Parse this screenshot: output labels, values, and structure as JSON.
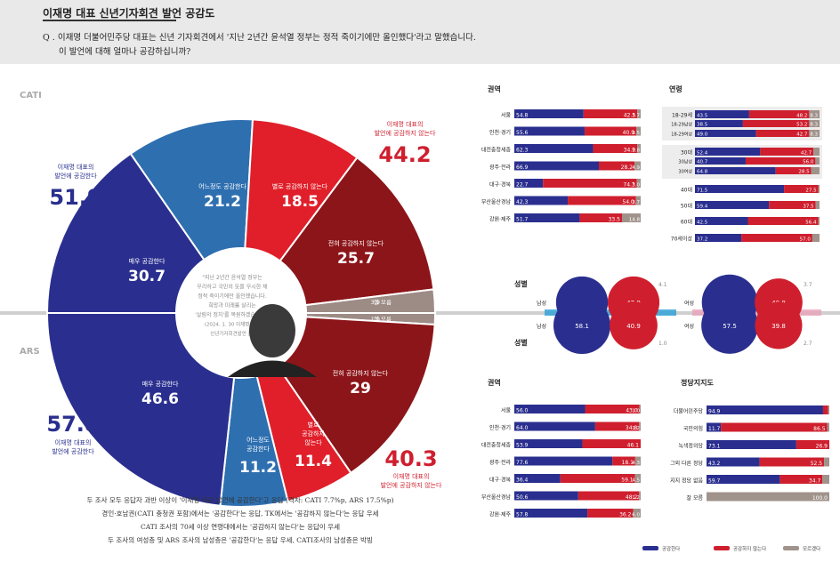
{
  "header": {
    "tag": "이재명 대표 신년기자회견 발언 공감도",
    "q_line1": "Q . 이재명 더불어민주당 대표는 신년 기자회견에서 '지난 2년간 윤석열 정부는 정적 죽이기에만 올인했다'라고 말했습니다.",
    "q_line2": "이 발언에 대해 얼마나 공감하십니까?"
  },
  "donut": {
    "cati_label": "CATI",
    "ars_label": "ARS",
    "cati_agree_label": [
      "이재명 대표의",
      "발언에 공감한다"
    ],
    "cati_agree_total": "51.9",
    "cati_disagree_label": [
      "이재명 대표의",
      "발언에 공감하지 않는다"
    ],
    "cati_disagree_total": "44.2",
    "ars_agree_total": "57.8",
    "ars_agree_label": [
      "이재명 대표의",
      "발언에 공감한다"
    ],
    "ars_disagree_total": "40.3",
    "ars_disagree_label": [
      "이재명 대표의",
      "발언에 공감하지 않는다"
    ],
    "quote": [
      "\"지난 2년간 윤석열 정부는",
      "무리하고 국민의 뜻을 무시한 채",
      "정적 죽이기에만 올인했습니다.",
      "희망과 미래를 살리는",
      "'살림의 정치'를 복원하겠습니다.\"",
      "(2024. 1. 30 이재명 대표",
      "신년기자회견발언 중)"
    ]
  },
  "chart_data": [
    {
      "type": "pie",
      "title": "CATI",
      "categories": [
        "어느정도 공감한다",
        "별로 공감하지 않는다",
        "전혀 공감하지 않는다",
        "잘 모름",
        "매우 공감한다"
      ],
      "values": [
        21.2,
        18.5,
        25.7,
        3.9,
        30.7
      ],
      "colors": [
        "#2e6fb0",
        "#e01f2a",
        "#8c1519",
        "#9d8b85",
        "#2a2f8f"
      ]
    },
    {
      "type": "pie",
      "title": "ARS",
      "categories": [
        "잘 모름",
        "전혀 공감하지 않는다",
        "별로 공감하지 않는다",
        "어느정도 공감한다",
        "매우 공감한다"
      ],
      "values": [
        1.9,
        29.0,
        11.4,
        11.2,
        46.6
      ],
      "colors": [
        "#9d8b85",
        "#8c1519",
        "#e01f2a",
        "#2e6fb0",
        "#2a2f8f"
      ]
    },
    {
      "type": "bar",
      "title": "권역",
      "subset": "CATI",
      "categories": [
        "서울",
        "인천·경기",
        "대전충청세종",
        "광주·전라",
        "대구·경북",
        "부산울산경남",
        "강원·제주"
      ],
      "series": [
        {
          "values": [
            54.8,
            55.6,
            62.3,
            66.9,
            22.7,
            42.3,
            51.7
          ]
        },
        {
          "values": [
            42.5,
            40.9,
            34.9,
            28.2,
            74.3,
            54.0,
            33.5
          ]
        },
        {
          "values": [
            2.7,
            3.5,
            2.8,
            4.9,
            3.0,
            3.7,
            14.8
          ]
        }
      ]
    },
    {
      "type": "bar",
      "title": "연령",
      "subset": "CATI",
      "categories": [
        "18-29세",
        "18-29남성",
        "18-29여성",
        "30대",
        "30남성",
        "30여성",
        "40대",
        "50대",
        "60대",
        "70세이상"
      ],
      "series": [
        {
          "values": [
            43.5,
            38.5,
            49.0,
            52.4,
            40.7,
            64.8,
            71.5,
            59.4,
            42.5,
            37.2
          ]
        },
        {
          "values": [
            48.2,
            53.2,
            42.7,
            42.7,
            56.0,
            28.5,
            27.5,
            37.5,
            56.4,
            57.0
          ]
        },
        {
          "values": [
            8.3,
            8.3,
            8.3,
            4.9,
            3.3,
            6.7,
            1.0,
            3.1,
            1.1,
            5.8
          ]
        }
      ]
    },
    {
      "type": "bar",
      "title": "성별",
      "categories": [
        "CATI 남성",
        "ARS 남성",
        "CATI 여성",
        "ARS 여성"
      ],
      "series": [
        {
          "values": [
            48.2,
            58.1,
            55.5,
            57.5
          ]
        },
        {
          "values": [
            47.9,
            40.9,
            40.8,
            39.8
          ]
        },
        {
          "values": [
            4.1,
            1.0,
            3.7,
            2.7
          ]
        }
      ]
    },
    {
      "type": "bar",
      "title": "권역",
      "subset": "ARS",
      "categories": [
        "서울",
        "인천·경기",
        "대전충청세종",
        "광주·전라",
        "대구·경북",
        "부산울산경남",
        "강원·제주"
      ],
      "series": [
        {
          "values": [
            56.0,
            64.0,
            53.9,
            77.6,
            36.4,
            50.6,
            57.8
          ]
        },
        {
          "values": [
            43.0,
            34.8,
            46.1,
            18.1,
            59.1,
            48.2,
            36.2
          ]
        },
        {
          "values": [
            1.0,
            1.2,
            0.0,
            4.3,
            4.5,
            1.2,
            6.0
          ]
        }
      ]
    },
    {
      "type": "bar",
      "title": "정당지지도",
      "categories": [
        "더불어민주당",
        "국민의힘",
        "녹색정의당",
        "그외 다른 정당",
        "지지 정당 없음",
        "잘 모름"
      ],
      "series": [
        {
          "values": [
            94.9,
            11.7,
            73.1,
            43.2,
            59.7,
            0
          ]
        },
        {
          "values": [
            4.1,
            86.5,
            26.9,
            52.5,
            34.7,
            0
          ]
        },
        {
          "values": [
            1.0,
            1.8,
            0,
            4.3,
            5.6,
            100.0
          ]
        }
      ]
    }
  ],
  "legend": {
    "agree": "공감한다",
    "disagree": "공감하지 않는다",
    "unknown": "모르겠다"
  },
  "colors": {
    "agree": "#2a2f8f",
    "disagree": "#cf1f2e",
    "unknown": "#a0938c",
    "mid": "#2e6fb0"
  },
  "notes": [
    "두 조사 모두 응답자 과반 이상이 '이재명 대표 발언에 공감한다'고 응답 (격차: CATI 7.7%p, ARS 17.5%p)",
    "경인·호남권(CATI 충청권 포함)에서는 '공감한다'는 응답, TK에서는 '공감하지 않는다'는 응답 우세",
    "CATI 조사의 70세 이상 연령대에서는 '공감하지 않는다'는 응답이 우세",
    "두 조사의 여성층 및 ARS 조사의 남성층은 '공감한다'는 응답 우세, CATI조사의 남성층은 박빙"
  ]
}
